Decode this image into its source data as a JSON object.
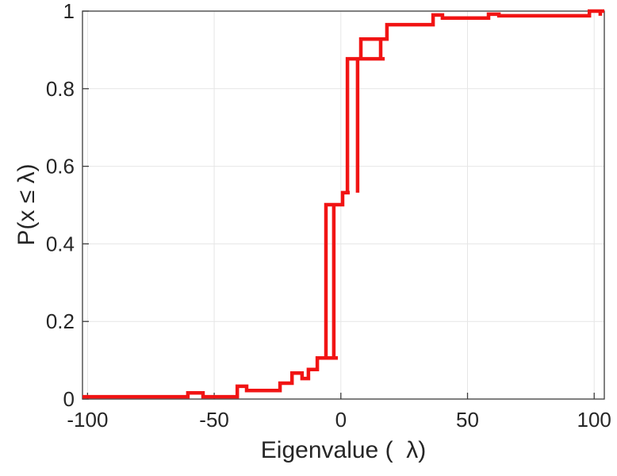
{
  "chart_data": {
    "type": "line",
    "subtype": "empirical-cdf-stairs",
    "title": "",
    "xlabel": "Eigenvalue (  λ)",
    "ylabel": "P(x ≤ λ)",
    "xlim": [
      -102,
      104
    ],
    "ylim": [
      0,
      1
    ],
    "x_ticks": [
      -100,
      -50,
      0,
      50,
      100
    ],
    "x_tick_labels": [
      "-100",
      "-50",
      "0",
      "50",
      "100"
    ],
    "y_ticks": [
      0,
      0.2,
      0.4,
      0.6,
      0.8,
      1
    ],
    "y_tick_labels": [
      "0",
      "0.2",
      "0.4",
      "0.6",
      "0.8",
      "1"
    ],
    "grid": true,
    "legend": null,
    "colors": {
      "curve": "#f11414",
      "axis": "#3c3c3c",
      "grid": "#e6e6e6",
      "text": "#262626",
      "background": "#ffffff"
    },
    "series": [
      {
        "name": "eigenvalue-ecdf",
        "color": "#f11414",
        "line_width": 4.5,
        "path": [
          [
            -102,
            0.006
          ],
          [
            -60.4,
            0.006
          ],
          [
            -60.4,
            0.016
          ],
          [
            -54.4,
            0.016
          ],
          [
            -54.4,
            0.006
          ],
          [
            -40.9,
            0.006
          ],
          [
            -40.9,
            0.033
          ],
          [
            -37.2,
            0.033
          ],
          [
            -37.2,
            0.022
          ],
          [
            -24,
            0.022
          ],
          [
            -24,
            0.041
          ],
          [
            -19.3,
            0.041
          ],
          [
            -19.3,
            0.067
          ],
          [
            -15.3,
            0.067
          ],
          [
            -15.3,
            0.053
          ],
          [
            -12.8,
            0.053
          ],
          [
            -12.8,
            0.076
          ],
          [
            -9.3,
            0.076
          ],
          [
            -9.3,
            0.106
          ],
          [
            -1.2,
            0.106
          ],
          [
            -5.9,
            0.106
          ],
          [
            -5.9,
            0.501
          ],
          [
            0.7,
            0.501
          ],
          [
            -2.8,
            0.501
          ],
          [
            -2.8,
            0.106
          ],
          [
            -2.8,
            0.501
          ],
          [
            0.7,
            0.501
          ],
          [
            0.7,
            0.532
          ],
          [
            3.5,
            0.532
          ],
          [
            2.6,
            0.532
          ],
          [
            2.6,
            0.877
          ],
          [
            6.6,
            0.877
          ],
          [
            6.6,
            0.532
          ],
          [
            6.6,
            0.877
          ],
          [
            17.3,
            0.877
          ],
          [
            7.9,
            0.877
          ],
          [
            7.9,
            0.928
          ],
          [
            15.7,
            0.928
          ],
          [
            15.7,
            0.877
          ],
          [
            15.7,
            0.928
          ],
          [
            18.2,
            0.928
          ],
          [
            18.2,
            0.965
          ],
          [
            36.4,
            0.965
          ],
          [
            36.4,
            0.99
          ],
          [
            40.1,
            0.99
          ],
          [
            40.1,
            0.982
          ],
          [
            58.3,
            0.982
          ],
          [
            58.3,
            0.992
          ],
          [
            62.4,
            0.992
          ],
          [
            62.4,
            0.988
          ],
          [
            98.1,
            0.988
          ],
          [
            98.1,
            1.0
          ],
          [
            102.4,
            1.0
          ],
          [
            102.4,
            0.988
          ],
          [
            102.4,
            1.0
          ],
          [
            104,
            1.0
          ]
        ]
      }
    ]
  }
}
